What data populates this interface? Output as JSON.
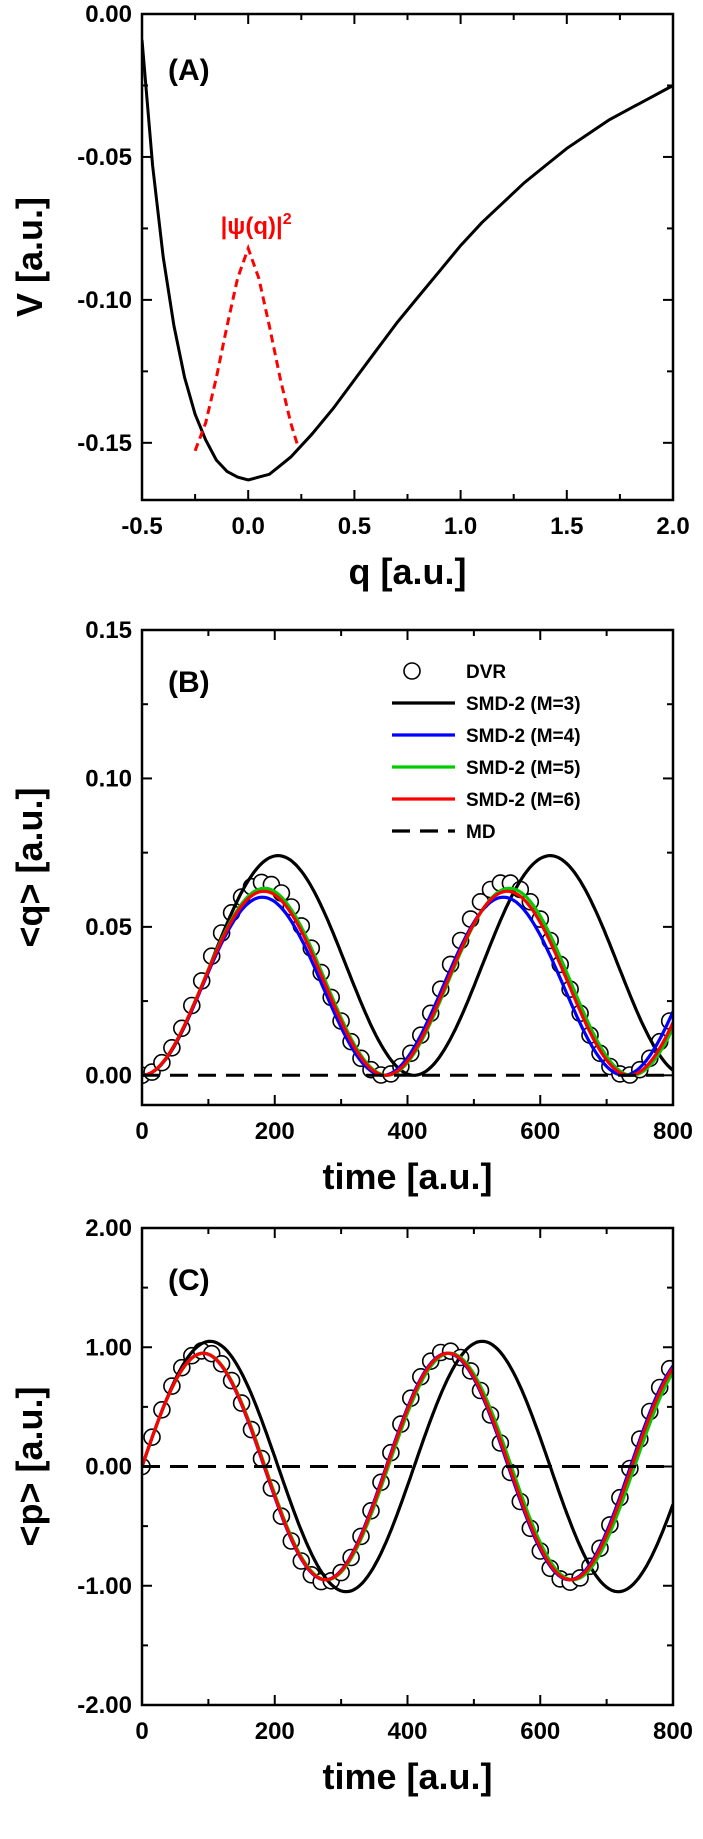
{
  "chart_data": [
    {
      "type": "line",
      "panel_label": "(A)",
      "xlabel": "q [a.u.]",
      "ylabel": "V [a.u.]",
      "xlim": [
        -0.5,
        2.0
      ],
      "ylim": [
        -0.17,
        0.0
      ],
      "xticks": [
        -0.5,
        0.0,
        0.5,
        1.0,
        1.5,
        2.0
      ],
      "xtick_labels": [
        "-0.5",
        "0.0",
        "0.5",
        "1.0",
        "1.5",
        "2.0"
      ],
      "yticks": [
        0.0,
        -0.05,
        -0.1,
        -0.15
      ],
      "ytick_labels": [
        "0.00",
        "-0.05",
        "-0.10",
        "-0.15"
      ],
      "series": [
        {
          "style": "solid",
          "color": "#000000",
          "x": [
            -0.5,
            -0.45,
            -0.4,
            -0.35,
            -0.3,
            -0.25,
            -0.2,
            -0.15,
            -0.1,
            -0.05,
            0.0,
            0.05,
            0.1,
            0.15,
            0.2,
            0.3,
            0.4,
            0.5,
            0.6,
            0.7,
            0.8,
            0.9,
            1.0,
            1.1,
            1.2,
            1.3,
            1.4,
            1.5,
            1.6,
            1.7,
            1.8,
            1.9,
            2.0
          ],
          "y": [
            -0.009,
            -0.053,
            -0.085,
            -0.109,
            -0.127,
            -0.14,
            -0.149,
            -0.156,
            -0.16,
            -0.162,
            -0.163,
            -0.162,
            -0.161,
            -0.158,
            -0.155,
            -0.147,
            -0.138,
            -0.128,
            -0.118,
            -0.108,
            -0.099,
            -0.09,
            -0.081,
            -0.073,
            -0.066,
            -0.059,
            -0.053,
            -0.047,
            -0.042,
            -0.037,
            -0.033,
            -0.029,
            -0.025
          ]
        },
        {
          "name": "|ψ(q)|²",
          "style": "dashed",
          "color": "#ff0000",
          "x": [
            -0.25,
            -0.2,
            -0.15,
            -0.1,
            -0.05,
            0.0,
            0.05,
            0.1,
            0.15,
            0.2,
            0.23
          ],
          "y": [
            -0.1528,
            -0.143,
            -0.1273,
            -0.1092,
            -0.0924,
            -0.082,
            -0.0924,
            -0.1092,
            -0.1273,
            -0.143,
            -0.1503
          ]
        }
      ],
      "annotations": [
        {
          "text": "|ψ(q)|",
          "sup": "2",
          "color": "#ff0000",
          "x": -0.13,
          "y": -0.077
        }
      ]
    },
    {
      "type": "line",
      "panel_label": "(B)",
      "xlabel": "time [a.u.]",
      "ylabel": "<q> [a.u.]",
      "xlim": [
        0,
        800
      ],
      "ylim": [
        -0.01,
        0.15
      ],
      "xticks": [
        0,
        200,
        400,
        600,
        800
      ],
      "xtick_labels": [
        "0",
        "200",
        "400",
        "600",
        "800"
      ],
      "yticks": [
        0.0,
        0.05,
        0.1,
        0.15
      ],
      "ytick_labels": [
        "0.00",
        "0.05",
        "0.10",
        "0.15"
      ],
      "legend": {
        "position": "top-right",
        "entries": [
          {
            "label": "DVR",
            "marker": "circle",
            "color": "#000000"
          },
          {
            "label": "SMD-2 (M=3)",
            "style": "solid",
            "color": "#000000"
          },
          {
            "label": "SMD-2 (M=4)",
            "style": "solid",
            "color": "#0000ff"
          },
          {
            "label": "SMD-2 (M=5)",
            "style": "solid",
            "color": "#00cc00"
          },
          {
            "label": "SMD-2 (M=6)",
            "style": "solid",
            "color": "#ff0000"
          },
          {
            "label": "MD",
            "style": "dashed",
            "color": "#000000"
          }
        ]
      },
      "series": [
        {
          "name": "DVR",
          "kind": "markers",
          "color": "#000000",
          "model": "osc",
          "amp": 0.0325,
          "offset": 0.0325,
          "period": 365,
          "phase": 0,
          "xmin": 0,
          "xmax": 800,
          "step": 15
        },
        {
          "name": "SMD-2 (M=3)",
          "kind": "line",
          "color": "#000000",
          "model": "osc",
          "amp": 0.037,
          "offset": 0.037,
          "period": 410,
          "phase": 0,
          "xmin": 0,
          "xmax": 800,
          "step": 4
        },
        {
          "name": "SMD-2 (M=4)",
          "kind": "line",
          "color": "#0000ff",
          "model": "osc",
          "amp": 0.03,
          "offset": 0.03,
          "period": 363,
          "phase": 0,
          "xmin": 0,
          "xmax": 800,
          "step": 4
        },
        {
          "name": "SMD-2 (M=5)",
          "kind": "line",
          "color": "#00cc00",
          "model": "osc",
          "amp": 0.0315,
          "offset": 0.0315,
          "period": 369,
          "phase": 0,
          "xmin": 0,
          "xmax": 800,
          "step": 4
        },
        {
          "name": "SMD-2 (M=6)",
          "kind": "line",
          "color": "#ff0000",
          "model": "osc",
          "amp": 0.031,
          "offset": 0.031,
          "period": 367,
          "phase": 0,
          "xmin": 0,
          "xmax": 800,
          "step": 4
        },
        {
          "name": "MD",
          "kind": "dashed",
          "color": "#000000",
          "model": "const",
          "value": 0.0,
          "xmin": 0,
          "xmax": 800,
          "step": 800
        }
      ]
    },
    {
      "type": "line",
      "panel_label": "(C)",
      "xlabel": "time [a.u.]",
      "ylabel": "<p> [a.u.]",
      "xlim": [
        0,
        800
      ],
      "ylim": [
        -2.0,
        2.0
      ],
      "xticks": [
        0,
        200,
        400,
        600,
        800
      ],
      "xtick_labels": [
        "0",
        "200",
        "400",
        "600",
        "800"
      ],
      "yticks": [
        -2.0,
        -1.0,
        0.0,
        1.0,
        2.0
      ],
      "ytick_labels": [
        "-2.00",
        "-1.00",
        "0.00",
        "1.00",
        "2.00"
      ],
      "series": [
        {
          "name": "DVR",
          "kind": "markers",
          "color": "#000000",
          "model": "sin",
          "amp": 0.97,
          "period": 368,
          "xmin": 0,
          "xmax": 800,
          "step": 15
        },
        {
          "name": "SMD-2 (M=3)",
          "kind": "line",
          "color": "#000000",
          "model": "sin",
          "amp": 1.05,
          "period": 410,
          "xmin": 0,
          "xmax": 800,
          "step": 4
        },
        {
          "name": "SMD-2 (M=4)",
          "kind": "line",
          "color": "#0000ff",
          "model": "sin",
          "amp": 0.95,
          "period": 368,
          "xmin": 0,
          "xmax": 800,
          "step": 4
        },
        {
          "name": "SMD-2 (M=5)",
          "kind": "line",
          "color": "#00cc00",
          "model": "sin",
          "amp": 0.95,
          "period": 371,
          "xmin": 0,
          "xmax": 800,
          "step": 4
        },
        {
          "name": "SMD-2 (M=6)",
          "kind": "line",
          "color": "#ff0000",
          "model": "sin",
          "amp": 0.95,
          "period": 369,
          "xmin": 0,
          "xmax": 800,
          "step": 4
        },
        {
          "name": "MD",
          "kind": "dashed",
          "color": "#000000",
          "model": "const",
          "value": 0.0,
          "xmin": 0,
          "xmax": 800,
          "step": 800
        }
      ]
    }
  ]
}
